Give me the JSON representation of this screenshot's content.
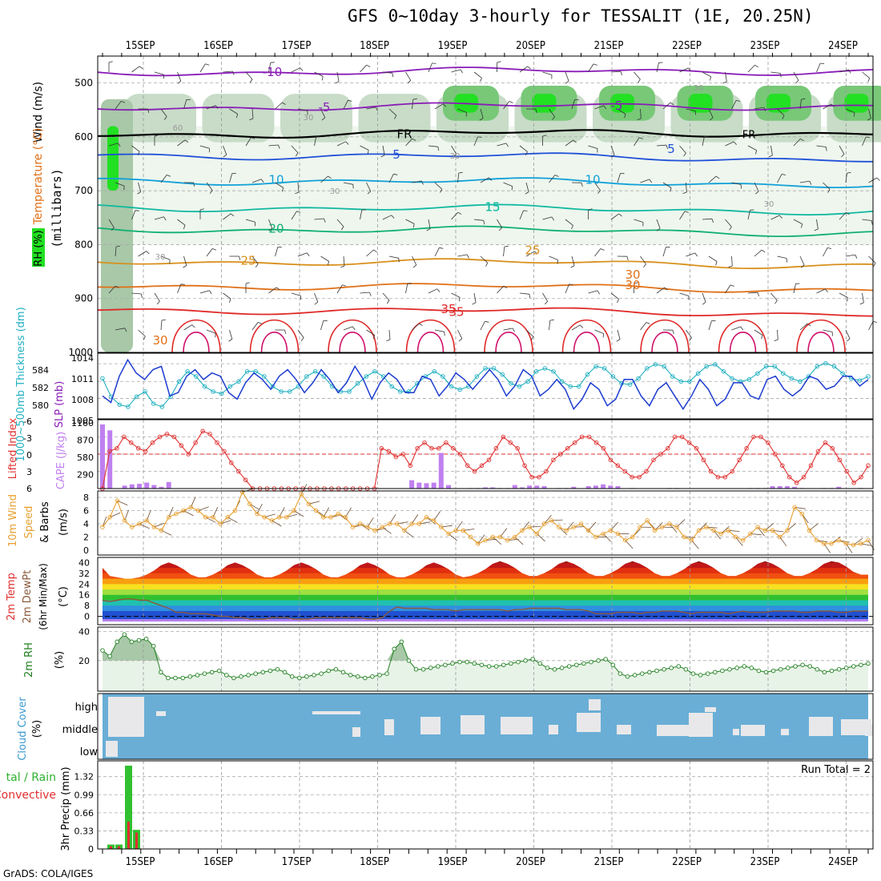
{
  "title": "GFS 0~10day 3-hourly for TESSALIT (1E, 20.25N)",
  "footer": "GrADS: COLA/IGES",
  "dates": [
    "15SEP",
    "16SEP",
    "17SEP",
    "18SEP",
    "19SEP",
    "20SEP",
    "21SEP",
    "22SEP",
    "23SEP",
    "24SEP"
  ],
  "chart_data": [
    {
      "type": "contour",
      "panel": "upper-air",
      "ylabel": "(millibars)",
      "legend_labels": [
        "Wind (m/s)",
        "Temperature (°C)",
        "RH (%)"
      ],
      "ytick_labels": [
        "500",
        "600",
        "700",
        "800",
        "900",
        "1000"
      ],
      "yrange": [
        450,
        1000
      ],
      "temperature_contours": [
        {
          "label": "-10",
          "pressure": 480,
          "color": "#8a1cb8"
        },
        {
          "label": "-5",
          "pressure": 545,
          "color": "#8a1cb8"
        },
        {
          "label": "FR",
          "pressure": 595,
          "color": "#000000"
        },
        {
          "label": "5",
          "pressure": 633,
          "color": "#2050d8"
        },
        {
          "label": "10",
          "pressure": 680,
          "color": "#10a0d8"
        },
        {
          "label": "15",
          "pressure": 730,
          "color": "#10b8a0"
        },
        {
          "label": "20",
          "pressure": 770,
          "color": "#10b070"
        },
        {
          "label": "25",
          "pressure": 830,
          "color": "#d8901c"
        },
        {
          "label": "30",
          "pressure": 875,
          "color": "#e07018"
        },
        {
          "label": "35",
          "pressure": 920,
          "color": "#e02828"
        }
      ],
      "rh_contour_labels": [
        "30",
        "30",
        "60",
        "30",
        "30",
        "30",
        "30"
      ]
    },
    {
      "type": "line",
      "panel": "slp-thickness",
      "label_left": "1000~500mb Thickness (dm)",
      "label_right": "SLP (mb)",
      "left_ticks": [
        "584",
        "582",
        "580"
      ],
      "right_ticks": [
        "1014",
        "1011",
        "1008",
        "1005"
      ],
      "series": [
        {
          "name": "SLP (mb)",
          "color": "#1c3cd0",
          "values": [
            1008.5,
            1007.5,
            1011.5,
            1014,
            1012,
            1011,
            1012.5,
            1013,
            1008.5,
            1009,
            1011.5,
            1012.5,
            1011,
            1012,
            1011.5,
            1009,
            1008,
            1010.5,
            1012,
            1011,
            1009.5,
            1011.5,
            1012.5,
            1011,
            1009,
            1010.5,
            1012.5,
            1011,
            1009,
            1010.5,
            1013,
            1011,
            1008,
            1010.5,
            1012,
            1011,
            1009,
            1009,
            1011.5,
            1011,
            1008.5,
            1010,
            1012,
            1011,
            1009.5,
            1011,
            1012.5,
            1011,
            1008.5,
            1010,
            1012.5,
            1011.5,
            1008.5,
            1009.5,
            1011,
            1009.5,
            1006.5,
            1008,
            1010.5,
            1009.5,
            1007,
            1008,
            1011,
            1011,
            1008.5,
            1007,
            1009.5,
            1010.5,
            1008.5,
            1006.5,
            1008.5,
            1011,
            1009.5,
            1007,
            1008,
            1010.5,
            1010.5,
            1008.5,
            1008,
            1011,
            1011.5,
            1009.5,
            1008.5,
            1009.5,
            1011.5,
            1011,
            1009.5,
            1010,
            1011.5,
            1011.5,
            1010,
            1011
          ]
        },
        {
          "name": "Thickness (dm)",
          "color": "#20b0c0",
          "values": [
            582.8,
            581,
            580.2,
            580,
            581,
            581.5,
            580.3,
            580,
            581,
            582.5,
            583.5,
            583,
            582,
            581.5,
            581.3,
            582,
            582.5,
            583.5,
            583.5,
            583,
            582,
            581.5,
            581.5,
            582,
            583,
            583.5,
            583,
            582,
            581.5,
            581.5,
            582.3,
            583,
            583.5,
            583,
            582,
            581.5,
            581.5,
            582.3,
            583,
            583.5,
            583,
            582,
            581.7,
            582,
            583,
            583.8,
            583.8,
            583.2,
            582.3,
            582,
            582.5,
            583.5,
            583.8,
            583.5,
            582.5,
            582,
            582,
            583.2,
            584,
            583.8,
            583,
            582.3,
            582.2,
            582.8,
            583.8,
            584.2,
            584,
            583,
            582.5,
            582.5,
            583.3,
            584,
            584.2,
            583.5,
            582.8,
            582.5,
            582.7,
            583.3,
            584,
            584,
            583.3,
            582.8,
            582.5,
            583,
            584,
            584.3,
            584,
            583.3,
            582.8,
            582.6,
            583
          ]
        }
      ]
    },
    {
      "type": "bar-line",
      "panel": "cape-li",
      "label_left": "Lifted Index",
      "label_right": "CAPE (J/kg)",
      "li_ticks": [
        "-6",
        "-3",
        "0",
        "3",
        "6"
      ],
      "cape_ticks": [
        "1160",
        "870",
        "580",
        "290"
      ],
      "lifted_index": [
        6,
        -0.5,
        -1,
        -3,
        -2,
        -1,
        -0.5,
        -2,
        -3,
        -3.5,
        -3,
        -1.5,
        0,
        -2,
        -4,
        -3.5,
        -2,
        -0.5,
        1.5,
        3,
        4.5,
        6,
        6,
        6,
        6,
        6,
        6,
        6,
        6,
        6,
        6,
        6,
        6,
        6,
        6,
        6,
        6,
        6,
        6,
        -1,
        -0.5,
        0.5,
        0,
        2,
        -1,
        -2,
        -1,
        -1,
        -2,
        -1,
        0,
        2,
        3,
        2,
        1,
        -1,
        -3,
        -2,
        -1,
        2,
        4,
        4,
        3,
        1,
        0,
        -1,
        -2,
        -3,
        -3,
        -2,
        -1,
        1,
        2,
        3,
        4,
        4,
        3,
        1,
        0,
        -1,
        -3,
        -3,
        -2,
        -1,
        1,
        3,
        4,
        4,
        3,
        1,
        -1,
        -3,
        -3,
        -2,
        0,
        2,
        4,
        5,
        4,
        2,
        -0.5,
        -2,
        -1,
        1,
        3,
        5,
        4,
        2
      ],
      "cape": [
        1080,
        980,
        0,
        50,
        70,
        80,
        100,
        60,
        30,
        110,
        0,
        0,
        0,
        0,
        0,
        0,
        0,
        0,
        0,
        0,
        0,
        0,
        0,
        0,
        0,
        0,
        0,
        0,
        0,
        0,
        0,
        0,
        0,
        0,
        0,
        0,
        0,
        0,
        0,
        0,
        0,
        0,
        140,
        100,
        90,
        100,
        600,
        60,
        0,
        0,
        10,
        10,
        20,
        20,
        10,
        10,
        60,
        20,
        50,
        50,
        40,
        0,
        10,
        10,
        30,
        0,
        40,
        50,
        70,
        50,
        40,
        0,
        10,
        0,
        0,
        0,
        0,
        10,
        10,
        0,
        0,
        0,
        0,
        0,
        0,
        0,
        0,
        0,
        10,
        10,
        10,
        40,
        40,
        40,
        30,
        10,
        0,
        0,
        10,
        10,
        30,
        0,
        0,
        10,
        0
      ]
    },
    {
      "type": "line",
      "panel": "wind10m",
      "label": "10m Wind Speed & Barbs (m/s)",
      "ticks": [
        "8",
        "6",
        "4",
        "2",
        "0"
      ],
      "values": [
        3.5,
        5,
        7.5,
        4.5,
        3.5,
        4,
        4.5,
        3.5,
        3,
        5,
        5.5,
        6,
        6.5,
        6,
        5,
        5,
        4,
        5,
        6,
        8.8,
        7,
        5.5,
        5,
        4.5,
        5,
        5,
        6,
        8.5,
        7,
        6,
        5,
        5,
        5.5,
        5,
        3.5,
        4,
        3.5,
        3,
        3.5,
        4,
        4,
        3,
        4,
        4,
        5,
        4.5,
        3.5,
        2.5,
        3,
        3,
        2,
        1,
        1.5,
        2,
        2,
        1.5,
        2,
        3,
        3.5,
        2.5,
        4,
        4.5,
        3.5,
        3,
        3.5,
        4,
        3,
        2,
        2.5,
        3,
        2.5,
        1.5,
        2,
        3.5,
        4.5,
        3,
        3.5,
        4,
        3.5,
        2,
        1.5,
        3,
        3.5,
        3,
        2.5,
        3,
        2,
        1.5,
        2.5,
        3.5,
        3,
        3,
        2,
        3,
        6.5,
        5.5,
        3,
        1.5,
        1,
        1,
        1.5,
        1,
        0.8,
        1,
        1.5
      ]
    },
    {
      "type": "line",
      "panel": "temp-dewpt",
      "label": "2m Temp 2m DewPt (6hr Min/Max) (°C)",
      "ticks": [
        "40",
        "32",
        "24",
        "16",
        "8",
        "0"
      ],
      "temperature": [
        36,
        30,
        29,
        28,
        28,
        29,
        31,
        34,
        38,
        40,
        38,
        35,
        31,
        29,
        29,
        31,
        34,
        38,
        40,
        38,
        35,
        31,
        29,
        29,
        31,
        34,
        38,
        40,
        38,
        35,
        31,
        29,
        29,
        31,
        34,
        38,
        40,
        38,
        35,
        31,
        29,
        29,
        31,
        34,
        38,
        40,
        38,
        35,
        31,
        29,
        30,
        32,
        35,
        39,
        41,
        39,
        36,
        32,
        30,
        30,
        32,
        35,
        39,
        41,
        39,
        36,
        32,
        30,
        30,
        32,
        35,
        39,
        41,
        39,
        36,
        32,
        30,
        30,
        32,
        35,
        39,
        41,
        39,
        36,
        32,
        30,
        30,
        32,
        35,
        39,
        41,
        39,
        36,
        32,
        30,
        30,
        32,
        35,
        39,
        41,
        40,
        37,
        33,
        31,
        31
      ],
      "dewpoint": [
        12,
        11,
        12,
        13,
        13,
        12,
        12,
        10,
        8,
        6,
        3,
        3,
        2,
        2,
        2,
        1,
        0,
        0,
        -1,
        -1,
        -2,
        -2,
        -2,
        -1,
        -1,
        -1,
        -2,
        -2,
        -2,
        -1,
        -1,
        -1,
        -1,
        -1,
        -1,
        -1,
        -2,
        -2,
        -1,
        4,
        7,
        6,
        6,
        6,
        6,
        5,
        5,
        5,
        4,
        5,
        5,
        5,
        5,
        5,
        5,
        4,
        5,
        5,
        6,
        6,
        6,
        6,
        6,
        5,
        5,
        5,
        4,
        2,
        2,
        2,
        3,
        3,
        3,
        2,
        3,
        3,
        4,
        4,
        4,
        3,
        2,
        3,
        3,
        3,
        3,
        2,
        3,
        4,
        3,
        3,
        3,
        4,
        4,
        4,
        4,
        3,
        3,
        4,
        4,
        4,
        3,
        3,
        4,
        4,
        4
      ]
    },
    {
      "type": "area",
      "panel": "rh2m",
      "label": "2m RH (%)",
      "ticks": [
        "40",
        "20"
      ],
      "values": [
        27,
        23,
        33,
        38,
        33,
        34,
        35,
        30,
        12,
        8,
        8,
        8,
        9,
        10,
        11,
        12,
        13,
        10,
        8,
        9,
        10,
        11,
        12,
        13,
        14,
        12,
        9,
        8,
        9,
        10,
        11,
        13,
        14,
        12,
        10,
        9,
        8,
        9,
        10,
        11,
        28,
        33,
        20,
        14,
        14,
        15,
        16,
        17,
        18,
        19,
        19,
        18,
        17,
        16,
        16,
        17,
        18,
        19,
        20,
        21,
        18,
        15,
        14,
        15,
        16,
        17,
        18,
        19,
        20,
        21,
        17,
        11,
        9,
        10,
        11,
        12,
        13,
        14,
        15,
        16,
        14,
        11,
        10,
        11,
        12,
        13,
        14,
        15,
        16,
        15,
        13,
        12,
        13,
        14,
        15,
        16,
        17,
        16,
        14,
        12,
        13,
        14,
        15,
        16,
        17,
        18
      ]
    },
    {
      "type": "bar",
      "panel": "cloud",
      "label": "Cloud Cover (%)",
      "levels": [
        "high",
        "middle",
        "low"
      ]
    },
    {
      "type": "bar",
      "panel": "precip",
      "label": "3hr Precip (mm)",
      "label_extra": "Total / Rain Convective",
      "ticks": [
        "1.32",
        "0.99",
        "0.66",
        "0.33",
        "0"
      ],
      "annotation": "Run Total = 2",
      "total": [
        0.08,
        0.08,
        1.52,
        0.35
      ],
      "convective": [
        0.05,
        0.05,
        0.5,
        0.3
      ]
    }
  ]
}
